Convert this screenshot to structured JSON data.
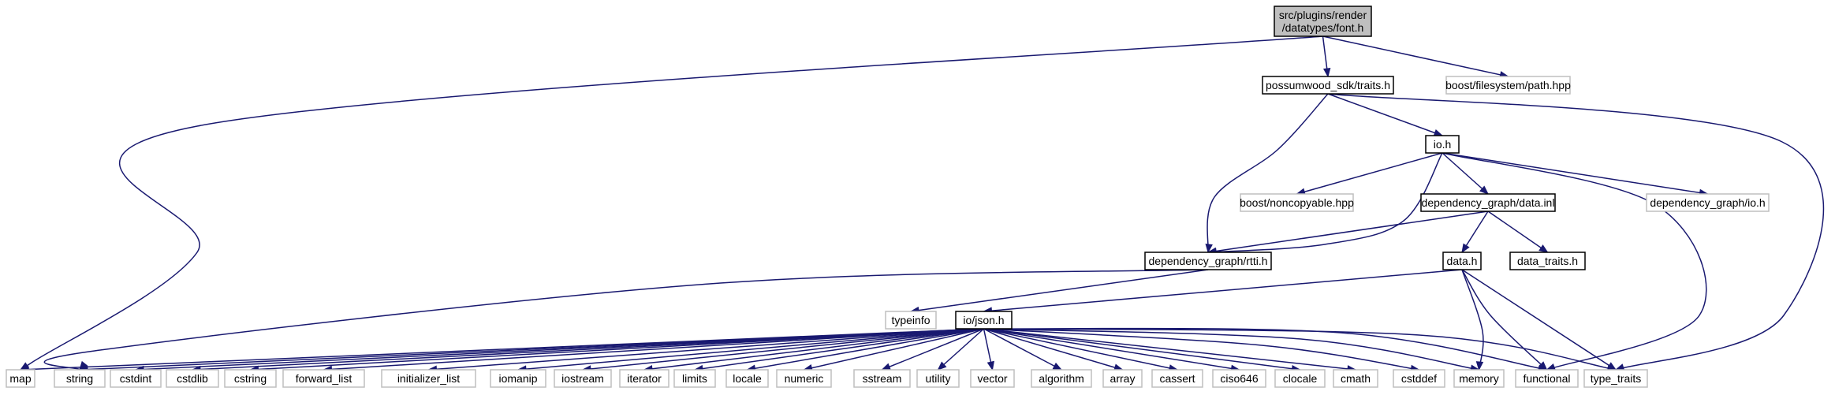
{
  "diagram": {
    "colors": {
      "edge": "#191970",
      "focus_fill": "#bfbfbf",
      "external_border": "#bfbfbf",
      "local_border": "#000000"
    },
    "nodes": [
      {
        "id": "font_h",
        "lines": [
          "src/plugins/render",
          "/datatypes/font.h"
        ],
        "kind": "focus"
      },
      {
        "id": "traits_h",
        "lines": [
          "possumwood_sdk/traits.h"
        ],
        "kind": "local"
      },
      {
        "id": "path_hpp",
        "lines": [
          "boost/filesystem/path.hpp"
        ],
        "kind": "external"
      },
      {
        "id": "io_h",
        "lines": [
          "io.h"
        ],
        "kind": "local"
      },
      {
        "id": "noncopyable",
        "lines": [
          "boost/noncopyable.hpp"
        ],
        "kind": "external"
      },
      {
        "id": "data_inl",
        "lines": [
          "dependency_graph/data.inl"
        ],
        "kind": "local"
      },
      {
        "id": "dg_io_h",
        "lines": [
          "dependency_graph/io.h"
        ],
        "kind": "external"
      },
      {
        "id": "rtti_h",
        "lines": [
          "dependency_graph/rtti.h"
        ],
        "kind": "local"
      },
      {
        "id": "data_h",
        "lines": [
          "data.h"
        ],
        "kind": "local"
      },
      {
        "id": "data_traits_h",
        "lines": [
          "data_traits.h"
        ],
        "kind": "local"
      },
      {
        "id": "typeinfo",
        "lines": [
          "typeinfo"
        ],
        "kind": "external"
      },
      {
        "id": "json_h",
        "lines": [
          "io/json.h"
        ],
        "kind": "local"
      },
      {
        "id": "map",
        "lines": [
          "map"
        ],
        "kind": "external"
      },
      {
        "id": "string",
        "lines": [
          "string"
        ],
        "kind": "external"
      },
      {
        "id": "cstdint",
        "lines": [
          "cstdint"
        ],
        "kind": "external"
      },
      {
        "id": "cstdlib",
        "lines": [
          "cstdlib"
        ],
        "kind": "external"
      },
      {
        "id": "cstring",
        "lines": [
          "cstring"
        ],
        "kind": "external"
      },
      {
        "id": "forward_list",
        "lines": [
          "forward_list"
        ],
        "kind": "external"
      },
      {
        "id": "initializer_list",
        "lines": [
          "initializer_list"
        ],
        "kind": "external"
      },
      {
        "id": "iomanip",
        "lines": [
          "iomanip"
        ],
        "kind": "external"
      },
      {
        "id": "iostream",
        "lines": [
          "iostream"
        ],
        "kind": "external"
      },
      {
        "id": "iterator",
        "lines": [
          "iterator"
        ],
        "kind": "external"
      },
      {
        "id": "limits",
        "lines": [
          "limits"
        ],
        "kind": "external"
      },
      {
        "id": "locale",
        "lines": [
          "locale"
        ],
        "kind": "external"
      },
      {
        "id": "numeric",
        "lines": [
          "numeric"
        ],
        "kind": "external"
      },
      {
        "id": "sstream",
        "lines": [
          "sstream"
        ],
        "kind": "external"
      },
      {
        "id": "utility",
        "lines": [
          "utility"
        ],
        "kind": "external"
      },
      {
        "id": "vector",
        "lines": [
          "vector"
        ],
        "kind": "external"
      },
      {
        "id": "algorithm",
        "lines": [
          "algorithm"
        ],
        "kind": "external"
      },
      {
        "id": "array",
        "lines": [
          "array"
        ],
        "kind": "external"
      },
      {
        "id": "cassert",
        "lines": [
          "cassert"
        ],
        "kind": "external"
      },
      {
        "id": "ciso646",
        "lines": [
          "ciso646"
        ],
        "kind": "external"
      },
      {
        "id": "clocale",
        "lines": [
          "clocale"
        ],
        "kind": "external"
      },
      {
        "id": "cmath",
        "lines": [
          "cmath"
        ],
        "kind": "external"
      },
      {
        "id": "cstddef",
        "lines": [
          "cstddef"
        ],
        "kind": "external"
      },
      {
        "id": "memory",
        "lines": [
          "memory"
        ],
        "kind": "external"
      },
      {
        "id": "functional",
        "lines": [
          "functional"
        ],
        "kind": "external"
      },
      {
        "id": "type_traits",
        "lines": [
          "type_traits"
        ],
        "kind": "external"
      }
    ],
    "edges": [
      {
        "from": "font_h",
        "to": "map"
      },
      {
        "from": "font_h",
        "to": "traits_h"
      },
      {
        "from": "font_h",
        "to": "path_hpp"
      },
      {
        "from": "traits_h",
        "to": "io_h"
      },
      {
        "from": "traits_h",
        "to": "rtti_h"
      },
      {
        "from": "traits_h",
        "to": "type_traits"
      },
      {
        "from": "io_h",
        "to": "noncopyable"
      },
      {
        "from": "io_h",
        "to": "data_inl"
      },
      {
        "from": "io_h",
        "to": "dg_io_h"
      },
      {
        "from": "io_h",
        "to": "rtti_h"
      },
      {
        "from": "io_h",
        "to": "functional"
      },
      {
        "from": "data_inl",
        "to": "rtti_h"
      },
      {
        "from": "data_inl",
        "to": "data_h"
      },
      {
        "from": "data_inl",
        "to": "data_traits_h"
      },
      {
        "from": "rtti_h",
        "to": "typeinfo"
      },
      {
        "from": "rtti_h",
        "to": "string"
      },
      {
        "from": "data_h",
        "to": "json_h"
      },
      {
        "from": "data_h",
        "to": "memory"
      },
      {
        "from": "data_h",
        "to": "functional"
      },
      {
        "from": "data_h",
        "to": "type_traits"
      },
      {
        "from": "json_h",
        "to": "map"
      },
      {
        "from": "json_h",
        "to": "string"
      },
      {
        "from": "json_h",
        "to": "cstdint"
      },
      {
        "from": "json_h",
        "to": "cstdlib"
      },
      {
        "from": "json_h",
        "to": "cstring"
      },
      {
        "from": "json_h",
        "to": "forward_list"
      },
      {
        "from": "json_h",
        "to": "initializer_list"
      },
      {
        "from": "json_h",
        "to": "iomanip"
      },
      {
        "from": "json_h",
        "to": "iostream"
      },
      {
        "from": "json_h",
        "to": "iterator"
      },
      {
        "from": "json_h",
        "to": "limits"
      },
      {
        "from": "json_h",
        "to": "locale"
      },
      {
        "from": "json_h",
        "to": "numeric"
      },
      {
        "from": "json_h",
        "to": "sstream"
      },
      {
        "from": "json_h",
        "to": "utility"
      },
      {
        "from": "json_h",
        "to": "vector"
      },
      {
        "from": "json_h",
        "to": "algorithm"
      },
      {
        "from": "json_h",
        "to": "array"
      },
      {
        "from": "json_h",
        "to": "cassert"
      },
      {
        "from": "json_h",
        "to": "ciso646"
      },
      {
        "from": "json_h",
        "to": "clocale"
      },
      {
        "from": "json_h",
        "to": "cmath"
      },
      {
        "from": "json_h",
        "to": "cstddef"
      },
      {
        "from": "json_h",
        "to": "memory"
      },
      {
        "from": "json_h",
        "to": "functional"
      },
      {
        "from": "json_h",
        "to": "type_traits"
      }
    ]
  }
}
